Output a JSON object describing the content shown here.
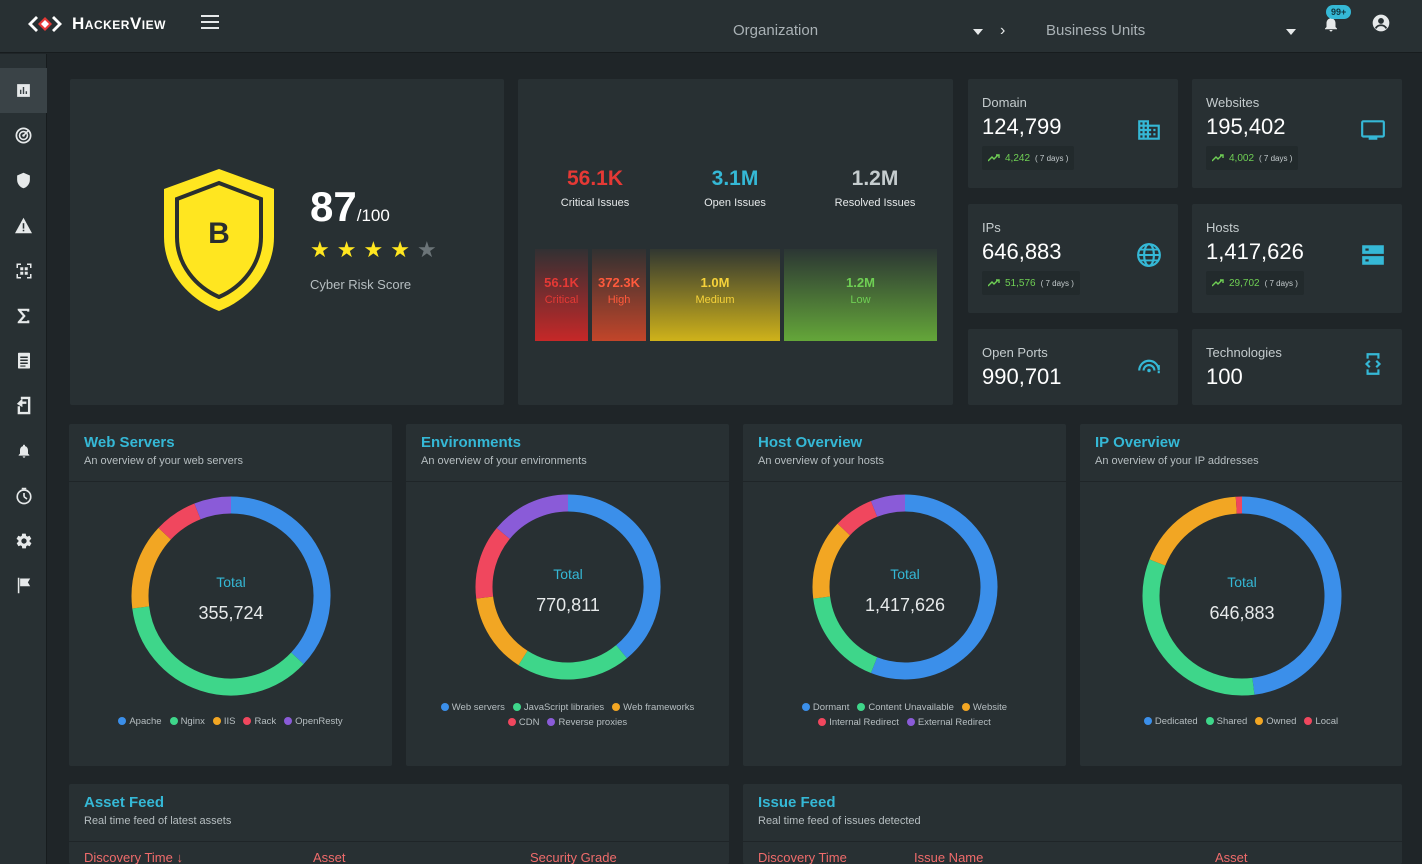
{
  "app": {
    "brand": "HackerView"
  },
  "header": {
    "organization_placeholder": "Organization",
    "business_units_placeholder": "Business Units",
    "notifications_badge": "99+"
  },
  "sidebar": {
    "items": [
      {
        "icon": "dashboard-icon",
        "active": true
      },
      {
        "icon": "radar-icon"
      },
      {
        "icon": "shield-icon"
      },
      {
        "icon": "warning-icon"
      },
      {
        "icon": "qr-scan-icon"
      },
      {
        "icon": "sigma-icon"
      },
      {
        "icon": "report-icon"
      },
      {
        "icon": "export-icon"
      },
      {
        "icon": "bell-icon"
      },
      {
        "icon": "timer-icon"
      },
      {
        "icon": "settings-icon"
      },
      {
        "icon": "flag-icon"
      }
    ]
  },
  "risk": {
    "grade": "B",
    "score": "87",
    "max": "/100",
    "stars": 4,
    "star_total": 5,
    "label": "Cyber Risk Score"
  },
  "issues": {
    "critical": {
      "value": "56.1K",
      "label": "Critical Issues",
      "color": "#e53935"
    },
    "open": {
      "value": "3.1M",
      "label": "Open Issues",
      "color": "#35b8d6"
    },
    "resolved": {
      "value": "1.2M",
      "label": "Resolved Issues",
      "color": "#c5ccce"
    },
    "severity": [
      {
        "value": "56.1K",
        "label": "Critical"
      },
      {
        "value": "372.3K",
        "label": "High"
      },
      {
        "value": "1.0M",
        "label": "Medium"
      },
      {
        "value": "1.2M",
        "label": "Low"
      }
    ]
  },
  "metrics": {
    "domain": {
      "label": "Domain",
      "value": "124,799",
      "trend": "4,242",
      "period": "( 7 days )",
      "icon": "building-icon"
    },
    "websites": {
      "label": "Websites",
      "value": "195,402",
      "trend": "4,002",
      "period": "( 7 days )",
      "icon": "monitor-icon"
    },
    "ips": {
      "label": "IPs",
      "value": "646,883",
      "trend": "51,576",
      "period": "( 7 days )",
      "icon": "globe-icon"
    },
    "hosts": {
      "label": "Hosts",
      "value": "1,417,626",
      "trend": "29,702",
      "period": "( 7 days )",
      "icon": "server-icon"
    },
    "open_ports": {
      "label": "Open Ports",
      "value": "990,701",
      "icon": "ports-icon"
    },
    "technologies": {
      "label": "Technologies",
      "value": "100",
      "icon": "code-icon"
    }
  },
  "charts": {
    "web_servers": {
      "title": "Web Servers",
      "subtitle": "An overview of your web servers",
      "total_label": "Total",
      "total": "355,724",
      "segments": [
        {
          "name": "Apache",
          "value": 0.37,
          "color": "#3b8fea"
        },
        {
          "name": "Nginx",
          "value": 0.36,
          "color": "#3ed68a"
        },
        {
          "name": "IIS",
          "value": 0.14,
          "color": "#f2a623"
        },
        {
          "name": "Rack",
          "value": 0.07,
          "color": "#f0475e"
        },
        {
          "name": "OpenResty",
          "value": 0.06,
          "color": "#8a5bd8"
        }
      ]
    },
    "environments": {
      "title": "Environments",
      "subtitle": "An overview of your environments",
      "total_label": "Total",
      "total": "770,811",
      "segments": [
        {
          "name": "Web servers",
          "value": 0.39,
          "color": "#3b8fea"
        },
        {
          "name": "JavaScript libraries",
          "value": 0.2,
          "color": "#3ed68a"
        },
        {
          "name": "Web frameworks",
          "value": 0.14,
          "color": "#f2a623"
        },
        {
          "name": "CDN",
          "value": 0.13,
          "color": "#f0475e"
        },
        {
          "name": "Reverse proxies",
          "value": 0.14,
          "color": "#8a5bd8"
        }
      ]
    },
    "host_overview": {
      "title": "Host Overview",
      "subtitle": "An overview of your hosts",
      "total_label": "Total",
      "total": "1,417,626",
      "segments": [
        {
          "name": "Dormant",
          "value": 0.56,
          "color": "#3b8fea"
        },
        {
          "name": "Content Unavailable",
          "value": 0.17,
          "color": "#3ed68a"
        },
        {
          "name": "Website",
          "value": 0.14,
          "color": "#f2a623"
        },
        {
          "name": "Internal Redirect",
          "value": 0.07,
          "color": "#f0475e"
        },
        {
          "name": "External Redirect",
          "value": 0.06,
          "color": "#8a5bd8"
        }
      ]
    },
    "ip_overview": {
      "title": "IP Overview",
      "subtitle": "An overview of your IP addresses",
      "total_label": "Total",
      "total": "646,883",
      "segments": [
        {
          "name": "Dedicated",
          "value": 0.48,
          "color": "#3b8fea"
        },
        {
          "name": "Shared",
          "value": 0.33,
          "color": "#3ed68a"
        },
        {
          "name": "Owned",
          "value": 0.18,
          "color": "#f2a623"
        },
        {
          "name": "Local",
          "value": 0.01,
          "color": "#f0475e"
        }
      ]
    }
  },
  "asset_feed": {
    "title": "Asset Feed",
    "subtitle": "Real time feed of latest assets",
    "columns": [
      "Discovery Time ↓",
      "Asset",
      "Security Grade"
    ]
  },
  "issue_feed": {
    "title": "Issue Feed",
    "subtitle": "Real time feed of issues detected",
    "columns": [
      "Discovery Time",
      "Issue Name",
      "Asset"
    ]
  }
}
